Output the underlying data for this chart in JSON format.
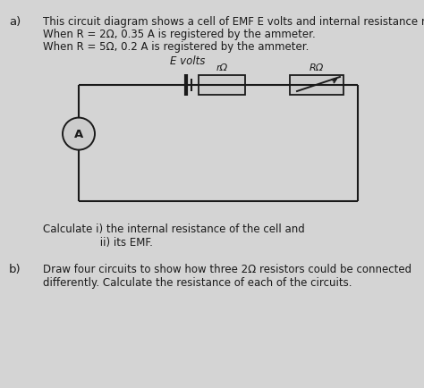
{
  "bg_color": "#b8b8b8",
  "paper_color": "#d4d4d4",
  "text_color": "#1a1a1a",
  "label_a": "a)",
  "label_b": "b)",
  "line_a1": "This circuit diagram shows a cell of EMF E volts and internal resistance rΩ.",
  "line_a2": "When R = 2Ω, 0.35 A is registered by the ammeter.",
  "line_a3": "When R = 5Ω, 0.2 A is registered by the ammeter.",
  "emf_label": "E volts",
  "r_label": "rΩ",
  "R_label": "RΩ",
  "ammeter_label": "A",
  "calc_line1": "Calculate i) the internal resistance of the cell and",
  "calc_line2": "                 ii) its EMF.",
  "line_b1": "Draw four circuits to show how three 2Ω resistors could be connected",
  "line_b2": "differently. Calculate the resistance of each of the circuits.",
  "figsize": [
    4.74,
    4.34
  ],
  "dpi": 100
}
